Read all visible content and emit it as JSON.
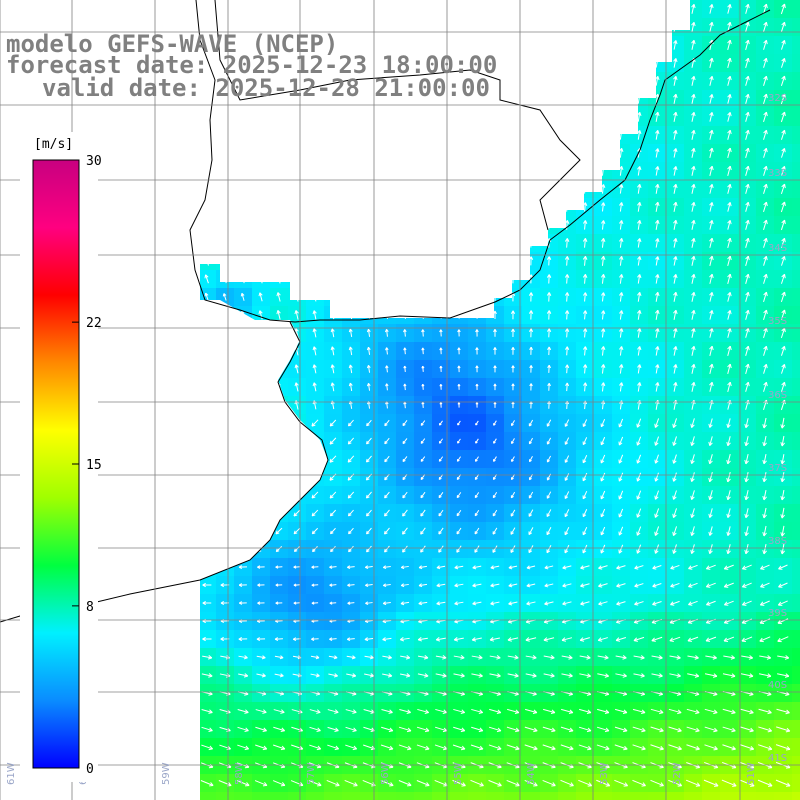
{
  "title": {
    "model": "modelo GEFS-WAVE (NCEP)",
    "forecast": "forecast date: 2025-12-23 18:00:00",
    "valid": "valid date: 2025-12-28 21:00:00"
  },
  "colorbar": {
    "unit": "[m/s]",
    "ticks": [
      {
        "value": 30,
        "label": "30"
      },
      {
        "value": 22,
        "label": "22"
      },
      {
        "value": 15,
        "label": "15"
      },
      {
        "value": 8,
        "label": "8"
      },
      {
        "value": 0,
        "label": "0"
      }
    ],
    "range": [
      0,
      30
    ],
    "stops": [
      "#0000ff",
      "#0a8cff",
      "#00f0ff",
      "#00ff40",
      "#a0ff00",
      "#ffff00",
      "#ff8800",
      "#ff0000",
      "#ff0080",
      "#c80080"
    ]
  },
  "map": {
    "lat_labels": [
      "32S",
      "33S",
      "34S",
      "35S",
      "36S",
      "37S",
      "38S",
      "39S",
      "40S",
      "41S"
    ],
    "lon_labels": [
      "61W",
      "60W",
      "59W",
      "58W",
      "57W",
      "56W",
      "55W",
      "54W",
      "53W",
      "52W",
      "51W"
    ],
    "land_color": "#ffffff",
    "grid_color": "#808080",
    "arrow_color": "#ffffff"
  }
}
